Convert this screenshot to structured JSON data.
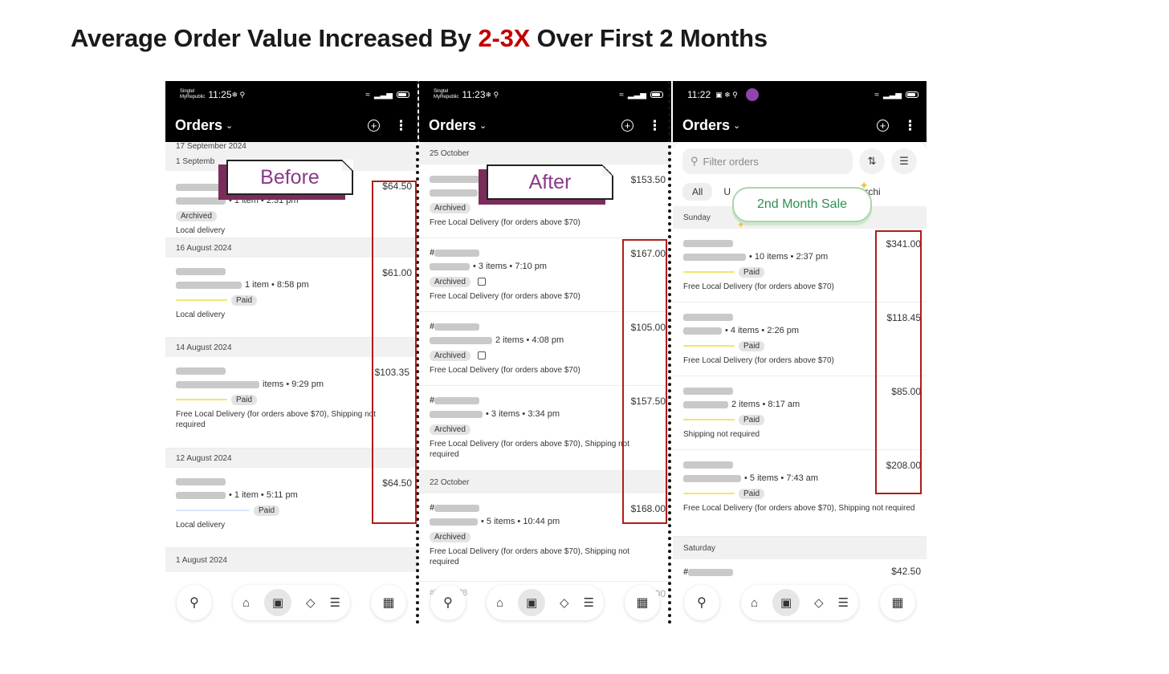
{
  "slide": {
    "title_before": "Average Order Value Increased By ",
    "title_highlight": "2-3X",
    "title_after": " Over First 2 Months",
    "highlight_color": "#c00000"
  },
  "callouts": {
    "before": "Before",
    "after": "After",
    "sale": "2nd Month Sale"
  },
  "phones": [
    {
      "carrier": "Singtel\nMyRepublic",
      "time": "11:25",
      "header_title": "Orders",
      "top_date": "17 September 2024",
      "groups": [
        {
          "date": "1 Septemb",
          "orders": [
            {
              "id": "",
              "meta": "• 1 item • 2:31 pm",
              "tags": [
                "Archived"
              ],
              "delivery": "Local delivery",
              "price": "$64.50"
            }
          ]
        },
        {
          "date": "16 August 2024",
          "orders": [
            {
              "id": "",
              "meta": "1 item • 8:58 pm",
              "tags": [
                "",
                "Paid"
              ],
              "delivery": "Local delivery",
              "price": "$61.00"
            }
          ]
        },
        {
          "date": "14 August 2024",
          "orders": [
            {
              "id": "",
              "meta": "items • 9:29 pm",
              "tags": [
                "",
                "Paid"
              ],
              "delivery": "Free Local Delivery (for orders above $70), Shipping not required",
              "price": "$103.35"
            }
          ]
        },
        {
          "date": "12 August 2024",
          "orders": [
            {
              "id": "",
              "meta": "• 1 item • 5:11 pm",
              "tags": [
                "",
                "Paid"
              ],
              "delivery": "Local delivery",
              "price": "$64.50"
            }
          ]
        },
        {
          "date": "1 August 2024",
          "orders": []
        }
      ]
    },
    {
      "carrier": "Singtel\nMyRepublic",
      "time": "11:23",
      "header_title": "Orders",
      "groups": [
        {
          "date": "25 October",
          "orders": [
            {
              "id": "",
              "meta": "",
              "tags": [
                "Archived"
              ],
              "delivery": "Free Local Delivery (for orders above $70)",
              "price": "$153.50"
            },
            {
              "id": "#",
              "meta": "• 3 items • 7:10 pm",
              "tags": [
                "Archived"
              ],
              "delivery": "Free Local Delivery (for orders above $70)",
              "price": "$167.00"
            },
            {
              "id": "#",
              "meta": "2 items • 4:08 pm",
              "tags": [
                "Archived"
              ],
              "delivery": "Free Local Delivery (for orders above $70)",
              "price": "$105.00"
            },
            {
              "id": "#",
              "meta": "• 3 items • 3:34 pm",
              "tags": [
                "Archived"
              ],
              "delivery": "Free Local Delivery (for orders above $70), Shipping not required",
              "price": "$157.50"
            }
          ]
        },
        {
          "date": "22 October",
          "orders": [
            {
              "id": "#",
              "meta": "• 5 items • 10:44 pm",
              "tags": [
                "Archived"
              ],
              "delivery": "Free Local Delivery (for orders above $70), Shipping not required",
              "price": "$168.00"
            }
          ]
        }
      ],
      "peek_id": "#RL 2828",
      "peek_price": "$00.00"
    },
    {
      "time": "11:22",
      "header_title": "Orders",
      "filter_placeholder": "Filter orders",
      "tabs": [
        "All",
        "U",
        "en",
        "Archi"
      ],
      "groups": [
        {
          "date": "Sunday",
          "orders": [
            {
              "id": "",
              "meta": "• 10 items • 2:37 pm",
              "tags": [
                "",
                "Paid"
              ],
              "delivery": "Free Local Delivery (for orders above $70)",
              "price": "$341.00"
            },
            {
              "id": "",
              "meta": "• 4 items • 2:26 pm",
              "tags": [
                "",
                "Paid"
              ],
              "delivery": "Free Local Delivery (for orders above $70)",
              "price": "$118.45"
            },
            {
              "id": "",
              "meta": "2 items • 8:17 am",
              "tags": [
                "",
                "Paid"
              ],
              "delivery": "Shipping not required",
              "price": "$85.00"
            },
            {
              "id": "",
              "meta": "• 5 items • 7:43 am",
              "tags": [
                "",
                "Paid"
              ],
              "delivery": "Free Local Delivery (for orders above $70), Shipping not required",
              "price": "$208.00"
            }
          ]
        },
        {
          "date": "Saturday",
          "orders": [
            {
              "id": "#",
              "meta": "",
              "tags": [],
              "delivery": "",
              "price": "$42.50"
            }
          ]
        }
      ]
    }
  ]
}
